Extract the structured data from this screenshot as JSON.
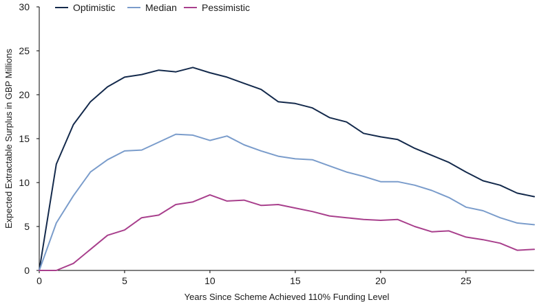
{
  "chart_data": {
    "type": "line",
    "title": "",
    "xlabel": "Years Since Scheme Achieved 110% Funding Level",
    "ylabel": "Expected Extractable Surplus in GBP Millions",
    "xlim": [
      0,
      29
    ],
    "ylim": [
      0,
      30
    ],
    "x_ticks": [
      0,
      5,
      10,
      15,
      20,
      25
    ],
    "y_ticks": [
      0,
      5,
      10,
      15,
      20,
      25,
      30
    ],
    "grid": false,
    "legend_position": "top-left",
    "x": [
      0,
      1,
      2,
      3,
      4,
      5,
      6,
      7,
      8,
      9,
      10,
      11,
      12,
      13,
      14,
      15,
      16,
      17,
      18,
      19,
      20,
      21,
      22,
      23,
      24,
      25,
      26,
      27,
      28,
      29
    ],
    "series": [
      {
        "name": "Optimistic",
        "color": "#13294b",
        "values": [
          0,
          12.1,
          16.6,
          19.2,
          20.9,
          22.0,
          22.3,
          22.8,
          22.6,
          23.1,
          22.5,
          22.0,
          21.3,
          20.6,
          19.2,
          19.0,
          18.5,
          17.4,
          16.9,
          15.6,
          15.2,
          14.9,
          13.9,
          13.1,
          12.3,
          11.2,
          10.2,
          9.7,
          8.8,
          8.4
        ]
      },
      {
        "name": "Median",
        "color": "#7a9ccb",
        "values": [
          0,
          5.4,
          8.5,
          11.2,
          12.6,
          13.6,
          13.7,
          14.6,
          15.5,
          15.4,
          14.8,
          15.3,
          14.3,
          13.6,
          13.0,
          12.7,
          12.6,
          11.9,
          11.2,
          10.7,
          10.1,
          10.1,
          9.7,
          9.1,
          8.3,
          7.2,
          6.8,
          6.0,
          5.4,
          5.2
        ]
      },
      {
        "name": "Pessimistic",
        "color": "#a83f8c",
        "values": [
          0,
          0,
          0.8,
          2.4,
          4.0,
          4.6,
          6.0,
          6.3,
          7.5,
          7.8,
          8.6,
          7.9,
          8.0,
          7.4,
          7.5,
          7.1,
          6.7,
          6.2,
          6.0,
          5.8,
          5.7,
          5.8,
          5.0,
          4.4,
          4.5,
          3.8,
          3.5,
          3.1,
          2.3,
          2.4
        ]
      }
    ]
  }
}
